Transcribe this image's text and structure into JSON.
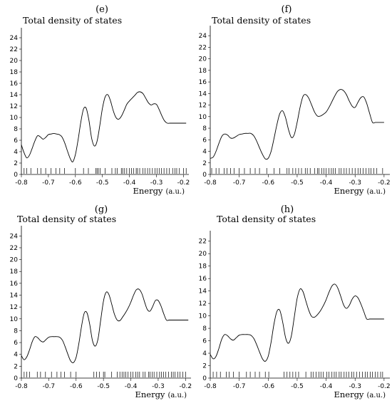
{
  "chart_data": [
    {
      "type": "line",
      "panel_label": "(e)",
      "title": "Total density of states",
      "xlabel": "Energy",
      "xunit": "(a.u.)",
      "xlim": [
        -0.8,
        -0.18
      ],
      "ylim": [
        0,
        25
      ],
      "xticks": [
        -0.8,
        -0.7,
        -0.6,
        -0.5,
        -0.4,
        -0.3,
        -0.2
      ],
      "yticks": [
        0,
        2,
        4,
        6,
        8,
        10,
        12,
        14,
        16,
        18,
        20,
        22,
        24
      ],
      "x": [
        -0.8,
        -0.79,
        -0.78,
        -0.77,
        -0.76,
        -0.75,
        -0.74,
        -0.73,
        -0.72,
        -0.71,
        -0.7,
        -0.69,
        -0.68,
        -0.67,
        -0.66,
        -0.65,
        -0.64,
        -0.63,
        -0.62,
        -0.61,
        -0.6,
        -0.59,
        -0.58,
        -0.57,
        -0.56,
        -0.55,
        -0.54,
        -0.53,
        -0.52,
        -0.51,
        -0.5,
        -0.49,
        -0.48,
        -0.47,
        -0.46,
        -0.45,
        -0.44,
        -0.43,
        -0.42,
        -0.41,
        -0.4,
        -0.39,
        -0.38,
        -0.37,
        -0.36,
        -0.35,
        -0.34,
        -0.33,
        -0.32,
        -0.31,
        -0.3,
        -0.29,
        -0.28,
        -0.27,
        -0.26,
        -0.25,
        -0.24,
        -0.23,
        -0.22,
        -0.21,
        -0.2,
        -0.19
      ],
      "y": [
        5.2,
        3.8,
        2.9,
        3.4,
        4.6,
        5.9,
        6.8,
        6.6,
        6.2,
        6.5,
        7.0,
        7.1,
        7.2,
        7.1,
        7.0,
        6.6,
        5.6,
        4.2,
        2.9,
        2.2,
        3.5,
        6.1,
        9.2,
        11.5,
        11.6,
        9.5,
        6.4,
        5.0,
        5.8,
        8.5,
        11.6,
        13.6,
        14.0,
        12.9,
        11.2,
        10.0,
        9.7,
        10.2,
        11.2,
        12.3,
        12.9,
        13.4,
        13.9,
        14.4,
        14.5,
        14.2,
        13.4,
        12.6,
        12.2,
        12.4,
        12.3,
        11.4,
        10.3,
        9.4,
        9.0,
        9.0,
        9.0,
        9.0,
        9.0,
        9.0,
        9.0,
        9.0
      ],
      "eigenvalues": [
        -0.79,
        -0.78,
        -0.765,
        -0.74,
        -0.728,
        -0.71,
        -0.69,
        -0.672,
        -0.658,
        -0.64,
        -0.6,
        -0.57,
        -0.552,
        -0.525,
        -0.52,
        -0.515,
        -0.508,
        -0.49,
        -0.465,
        -0.452,
        -0.445,
        -0.43,
        -0.425,
        -0.418,
        -0.41,
        -0.4,
        -0.392,
        -0.385,
        -0.375,
        -0.37,
        -0.362,
        -0.35,
        -0.342,
        -0.333,
        -0.325,
        -0.315,
        -0.305,
        -0.298,
        -0.29,
        -0.282,
        -0.272,
        -0.262,
        -0.252,
        -0.24,
        -0.232,
        -0.225,
        -0.215,
        -0.2,
        -0.19
      ]
    },
    {
      "type": "line",
      "panel_label": "(f)",
      "title": "Total density of states",
      "xlabel": "Energy",
      "xunit": "(a.u.)",
      "xlim": [
        -0.8,
        -0.18
      ],
      "ylim": [
        0,
        25
      ],
      "xticks": [
        -0.8,
        -0.7,
        -0.6,
        -0.5,
        -0.4,
        -0.3,
        -0.2
      ],
      "yticks": [
        0,
        2,
        4,
        6,
        8,
        10,
        12,
        14,
        16,
        18,
        20,
        22,
        24
      ],
      "x": [
        -0.8,
        -0.79,
        -0.78,
        -0.77,
        -0.76,
        -0.75,
        -0.74,
        -0.73,
        -0.72,
        -0.71,
        -0.7,
        -0.69,
        -0.68,
        -0.67,
        -0.66,
        -0.65,
        -0.64,
        -0.63,
        -0.62,
        -0.61,
        -0.6,
        -0.59,
        -0.58,
        -0.57,
        -0.56,
        -0.55,
        -0.54,
        -0.53,
        -0.52,
        -0.51,
        -0.5,
        -0.49,
        -0.48,
        -0.47,
        -0.46,
        -0.45,
        -0.44,
        -0.43,
        -0.42,
        -0.41,
        -0.4,
        -0.39,
        -0.38,
        -0.37,
        -0.36,
        -0.35,
        -0.34,
        -0.33,
        -0.32,
        -0.31,
        -0.3,
        -0.29,
        -0.28,
        -0.27,
        -0.26,
        -0.25,
        -0.24,
        -0.23,
        -0.22,
        -0.21,
        -0.2
      ],
      "y": [
        2.8,
        3.0,
        4.0,
        5.4,
        6.6,
        7.0,
        6.8,
        6.3,
        6.3,
        6.6,
        6.9,
        7.0,
        7.1,
        7.1,
        7.1,
        6.7,
        5.8,
        4.6,
        3.5,
        2.7,
        2.8,
        4.0,
        6.2,
        8.6,
        10.5,
        11.0,
        9.8,
        7.8,
        6.4,
        6.9,
        9.0,
        11.6,
        13.5,
        13.8,
        13.2,
        12.0,
        10.8,
        10.1,
        10.1,
        10.4,
        10.8,
        11.6,
        12.6,
        13.6,
        14.4,
        14.7,
        14.5,
        13.8,
        12.7,
        11.8,
        11.6,
        12.5,
        13.3,
        13.4,
        12.3,
        10.6,
        9.0,
        9.0,
        9.0,
        9.0,
        9.0
      ],
      "eigenvalues": [
        -0.795,
        -0.78,
        -0.77,
        -0.752,
        -0.742,
        -0.73,
        -0.718,
        -0.7,
        -0.682,
        -0.662,
        -0.645,
        -0.63,
        -0.605,
        -0.58,
        -0.56,
        -0.535,
        -0.528,
        -0.515,
        -0.505,
        -0.495,
        -0.485,
        -0.472,
        -0.465,
        -0.455,
        -0.44,
        -0.43,
        -0.425,
        -0.415,
        -0.408,
        -0.4,
        -0.39,
        -0.382,
        -0.375,
        -0.368,
        -0.355,
        -0.348,
        -0.338,
        -0.33,
        -0.32,
        -0.31,
        -0.3,
        -0.29,
        -0.282,
        -0.272,
        -0.262,
        -0.252,
        -0.245,
        -0.235,
        -0.225,
        -0.205
      ]
    },
    {
      "type": "line",
      "panel_label": "(g)",
      "title": "Total density of states",
      "xlabel": "Energy",
      "xunit": "(a.u.)",
      "xlim": [
        -0.8,
        -0.18
      ],
      "ylim": [
        0,
        25
      ],
      "xticks": [
        -0.8,
        -0.7,
        -0.6,
        -0.5,
        -0.4,
        -0.3,
        -0.2
      ],
      "yticks": [
        0,
        2,
        4,
        6,
        8,
        10,
        12,
        14,
        16,
        18,
        20,
        22,
        24
      ],
      "x": [
        -0.8,
        -0.79,
        -0.78,
        -0.77,
        -0.76,
        -0.75,
        -0.74,
        -0.73,
        -0.72,
        -0.71,
        -0.7,
        -0.69,
        -0.68,
        -0.67,
        -0.66,
        -0.65,
        -0.64,
        -0.63,
        -0.62,
        -0.61,
        -0.6,
        -0.59,
        -0.58,
        -0.57,
        -0.56,
        -0.55,
        -0.54,
        -0.53,
        -0.52,
        -0.51,
        -0.5,
        -0.49,
        -0.48,
        -0.47,
        -0.46,
        -0.45,
        -0.44,
        -0.43,
        -0.42,
        -0.41,
        -0.4,
        -0.39,
        -0.38,
        -0.37,
        -0.36,
        -0.35,
        -0.34,
        -0.33,
        -0.32,
        -0.31,
        -0.3,
        -0.29,
        -0.28,
        -0.27,
        -0.26,
        -0.25,
        -0.24,
        -0.23,
        -0.22,
        -0.21,
        -0.2,
        -0.19
      ],
      "y": [
        3.8,
        3.1,
        3.6,
        4.8,
        6.2,
        7.0,
        6.8,
        6.3,
        6.1,
        6.5,
        6.9,
        7.0,
        7.0,
        7.0,
        6.9,
        6.4,
        5.3,
        4.0,
        2.9,
        2.6,
        3.5,
        5.8,
        8.8,
        11.0,
        11.0,
        9.0,
        6.3,
        5.4,
        6.6,
        9.8,
        13.0,
        14.5,
        14.1,
        12.5,
        10.8,
        9.8,
        9.7,
        10.3,
        11.0,
        11.8,
        12.8,
        14.0,
        14.9,
        15.0,
        14.3,
        12.9,
        11.6,
        11.3,
        12.1,
        13.1,
        13.1,
        12.2,
        10.9,
        9.8,
        9.8,
        9.8,
        9.8,
        9.8,
        9.8,
        9.8,
        9.8,
        9.8
      ],
      "eigenvalues": [
        -0.79,
        -0.78,
        -0.77,
        -0.742,
        -0.73,
        -0.712,
        -0.69,
        -0.67,
        -0.655,
        -0.642,
        -0.62,
        -0.6,
        -0.535,
        -0.525,
        -0.515,
        -0.5,
        -0.495,
        -0.47,
        -0.45,
        -0.44,
        -0.432,
        -0.425,
        -0.418,
        -0.41,
        -0.4,
        -0.392,
        -0.382,
        -0.375,
        -0.368,
        -0.355,
        -0.348,
        -0.335,
        -0.33,
        -0.322,
        -0.315,
        -0.305,
        -0.295,
        -0.288,
        -0.28,
        -0.272,
        -0.262,
        -0.252,
        -0.245,
        -0.238,
        -0.228,
        -0.22,
        -0.21,
        -0.2
      ]
    },
    {
      "type": "line",
      "panel_label": "(h)",
      "title": "Total density of states",
      "xlabel": "Energy",
      "xunit": "(a.u.)",
      "xlim": [
        -0.8,
        -0.18
      ],
      "ylim": [
        0,
        23
      ],
      "xticks": [
        -0.8,
        -0.7,
        -0.6,
        -0.5,
        -0.4,
        -0.3,
        -0.2
      ],
      "yticks": [
        0,
        2,
        4,
        6,
        8,
        10,
        12,
        14,
        16,
        18,
        20,
        22
      ],
      "x": [
        -0.8,
        -0.79,
        -0.78,
        -0.77,
        -0.76,
        -0.75,
        -0.74,
        -0.73,
        -0.72,
        -0.71,
        -0.7,
        -0.69,
        -0.68,
        -0.67,
        -0.66,
        -0.65,
        -0.64,
        -0.63,
        -0.62,
        -0.61,
        -0.6,
        -0.59,
        -0.58,
        -0.57,
        -0.56,
        -0.55,
        -0.54,
        -0.53,
        -0.52,
        -0.51,
        -0.5,
        -0.49,
        -0.48,
        -0.47,
        -0.46,
        -0.45,
        -0.44,
        -0.43,
        -0.42,
        -0.41,
        -0.4,
        -0.39,
        -0.38,
        -0.37,
        -0.36,
        -0.35,
        -0.34,
        -0.33,
        -0.32,
        -0.31,
        -0.3,
        -0.29,
        -0.28,
        -0.27,
        -0.26,
        -0.25,
        -0.24,
        -0.23,
        -0.22,
        -0.21,
        -0.2
      ],
      "y": [
        3.8,
        3.1,
        3.5,
        4.8,
        6.3,
        7.0,
        6.8,
        6.3,
        6.1,
        6.5,
        6.9,
        7.0,
        7.0,
        7.0,
        6.9,
        6.4,
        5.4,
        4.2,
        3.1,
        2.7,
        3.5,
        5.8,
        8.7,
        10.7,
        10.9,
        9.0,
        6.5,
        5.6,
        6.8,
        9.8,
        12.8,
        14.3,
        13.9,
        12.4,
        10.9,
        9.9,
        9.8,
        10.2,
        10.8,
        11.6,
        12.6,
        13.8,
        14.8,
        15.1,
        14.5,
        13.2,
        11.8,
        11.2,
        11.7,
        12.7,
        13.2,
        12.9,
        11.9,
        10.7,
        9.5,
        9.5,
        9.5,
        9.5,
        9.5,
        9.5,
        9.5
      ],
      "eigenvalues": [
        -0.79,
        -0.778,
        -0.765,
        -0.745,
        -0.735,
        -0.72,
        -0.7,
        -0.675,
        -0.662,
        -0.645,
        -0.63,
        -0.61,
        -0.598,
        -0.545,
        -0.535,
        -0.525,
        -0.515,
        -0.505,
        -0.495,
        -0.47,
        -0.452,
        -0.445,
        -0.435,
        -0.425,
        -0.418,
        -0.41,
        -0.398,
        -0.39,
        -0.38,
        -0.372,
        -0.365,
        -0.355,
        -0.348,
        -0.338,
        -0.33,
        -0.322,
        -0.312,
        -0.305,
        -0.295,
        -0.285,
        -0.275,
        -0.265,
        -0.258,
        -0.248,
        -0.24,
        -0.23,
        -0.222,
        -0.212,
        -0.205
      ]
    }
  ]
}
